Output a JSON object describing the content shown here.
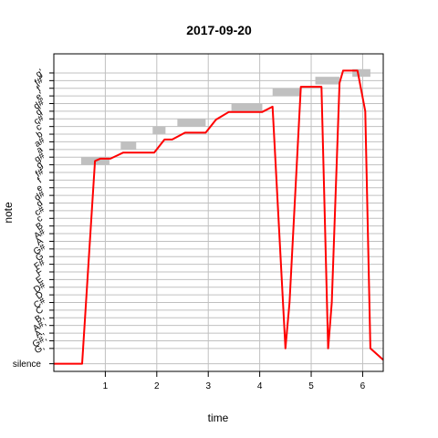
{
  "chart_data": {
    "type": "line",
    "title": "2017-09-20",
    "xlabel": "time",
    "ylabel": "note",
    "xlim": [
      0,
      6.4
    ],
    "ylim": [
      -1,
      40.5
    ],
    "x_ticks": [
      1,
      2,
      3,
      4,
      5,
      6
    ],
    "y_labels": [
      "G,",
      "G#,",
      "A,",
      "A#,",
      "B,",
      "C",
      "C#",
      "D",
      "D#",
      "E",
      "F",
      "F#",
      "G",
      "G#",
      "A",
      "A#",
      "B",
      "c",
      "c#",
      "d",
      "d#",
      "e",
      "f",
      "f#",
      "g",
      "g#",
      "a",
      "a#",
      "b",
      "c'",
      "c#'",
      "d'",
      "d#'",
      "e'",
      "f'",
      "f#'",
      "g'"
    ],
    "y_label_first_pos": 2,
    "silence_label": "silence",
    "silence_pos": 0,
    "grid": true,
    "colors": {
      "pitch_line": "#ff0000",
      "note_box": "#c0c0c0",
      "grid": "#c0c0c0"
    },
    "note_boxes": [
      {
        "x0": 0.53,
        "x1": 1.08,
        "y": 26.5
      },
      {
        "x0": 1.3,
        "x1": 1.6,
        "y": 28.5
      },
      {
        "x0": 1.92,
        "x1": 2.17,
        "y": 30.5
      },
      {
        "x0": 2.4,
        "x1": 2.95,
        "y": 31.5
      },
      {
        "x0": 3.45,
        "x1": 4.05,
        "y": 33.5
      },
      {
        "x0": 4.25,
        "x1": 4.78,
        "y": 35.5
      },
      {
        "x0": 5.08,
        "x1": 5.55,
        "y": 37.0
      },
      {
        "x0": 5.8,
        "x1": 6.15,
        "y": 38.0
      }
    ],
    "pitch_curve": {
      "x": [
        0,
        0.55,
        0.8,
        0.9,
        1.1,
        1.35,
        1.55,
        1.75,
        1.95,
        2.15,
        2.3,
        2.55,
        2.75,
        2.95,
        3.15,
        3.4,
        3.6,
        3.8,
        4.05,
        4.25,
        4.5,
        4.58,
        4.8,
        4.9,
        5.05,
        5.2,
        5.33,
        5.4,
        5.55,
        5.62,
        5.72,
        5.9,
        6.05,
        6.15,
        6.4
      ],
      "y": [
        0,
        0,
        26.5,
        26.8,
        26.8,
        27.6,
        27.6,
        27.6,
        27.6,
        29.3,
        29.3,
        30.2,
        30.2,
        30.2,
        31.9,
        32.9,
        32.9,
        32.9,
        32.9,
        33.6,
        2,
        8,
        36.2,
        36.2,
        36.2,
        36.2,
        2,
        8,
        36.7,
        38.3,
        38.3,
        38.3,
        33.0,
        2,
        0.5
      ]
    }
  }
}
